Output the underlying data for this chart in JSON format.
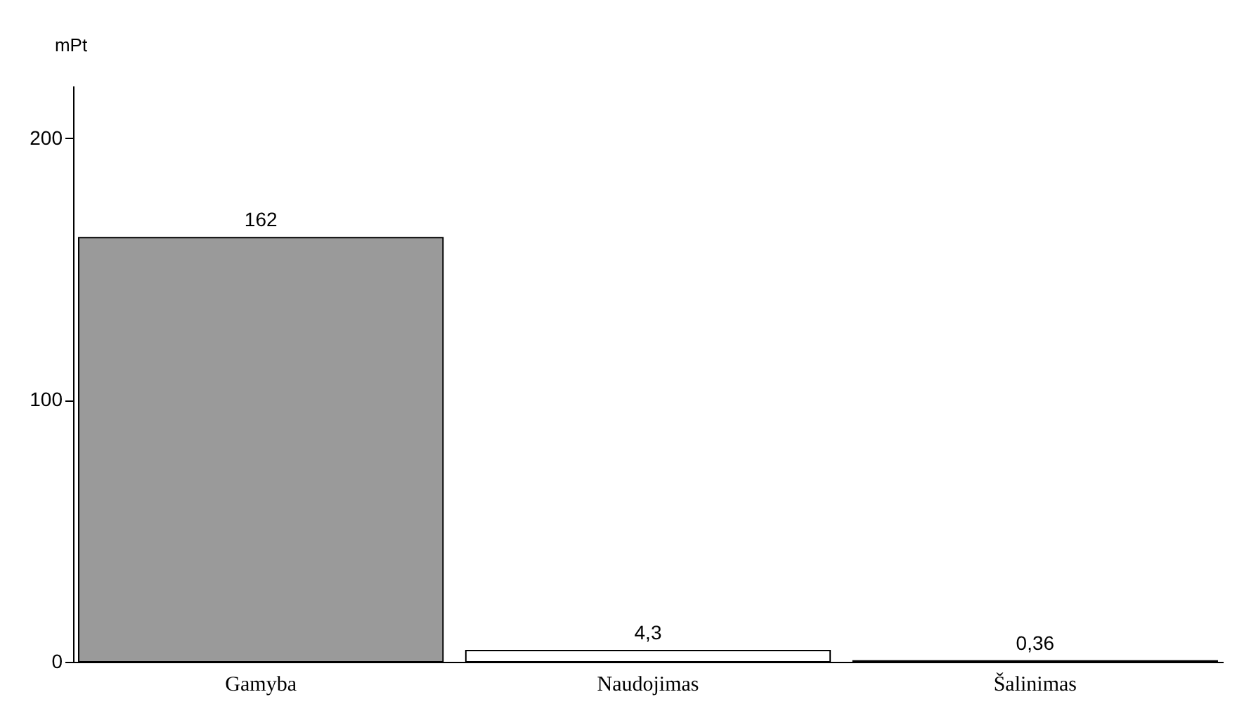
{
  "chart_data": {
    "type": "bar",
    "ylabel": "mPt",
    "categories": [
      "Gamyba",
      "Naudojimas",
      "Šalinimas"
    ],
    "values": [
      162,
      4.3,
      0.36
    ],
    "value_labels": [
      "162",
      "4,3",
      "0,36"
    ],
    "colors": [
      "#9a9a9a",
      "#ffffff",
      "#ffffff"
    ],
    "ylim": [
      0,
      220
    ],
    "yticks": [
      0,
      100,
      200
    ],
    "grid": false
  }
}
